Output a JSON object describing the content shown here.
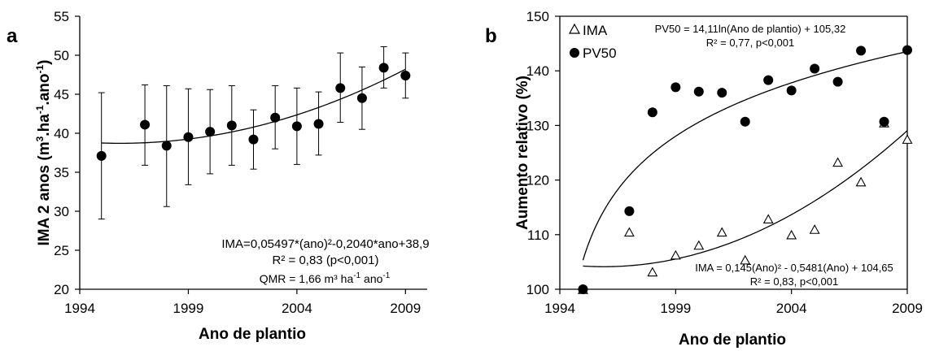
{
  "chart_data": [
    {
      "panel_label": "a",
      "type": "scatter",
      "xlabel": "Ano de plantio",
      "ylabel_main": "IMA 2 anos (m",
      "ylabel_sup1": "3",
      "ylabel_mid": ".ha",
      "ylabel_sup2": "-1",
      "ylabel_mid2": ".ano",
      "ylabel_sup3": "-1",
      "ylabel_end": ")",
      "xlim": [
        1994,
        2010
      ],
      "ylim": [
        20,
        55
      ],
      "xticks": [
        1994,
        1999,
        2004,
        2009
      ],
      "yticks": [
        20,
        25,
        30,
        35,
        40,
        45,
        50,
        55
      ],
      "series": [
        {
          "x": [
            1995,
            1997,
            1998,
            1999,
            2000,
            2001,
            2002,
            2003,
            2004,
            2005,
            2006,
            2007,
            2008,
            2009
          ],
          "y": [
            37.1,
            41.1,
            38.4,
            39.5,
            40.2,
            41.0,
            39.2,
            42.0,
            40.9,
            41.2,
            45.8,
            44.5,
            48.4,
            47.4
          ],
          "err_low": [
            29.0,
            35.9,
            30.6,
            33.4,
            34.8,
            35.9,
            35.4,
            38.0,
            36.0,
            37.2,
            41.4,
            40.5,
            45.8,
            44.5
          ],
          "err_high": [
            45.2,
            46.2,
            46.1,
            45.7,
            45.6,
            46.1,
            43.0,
            46.1,
            45.8,
            45.3,
            50.3,
            48.5,
            51.1,
            50.3
          ]
        }
      ],
      "fit": {
        "a": 0.05497,
        "b": -0.204,
        "c": 38.9,
        "x_from": 1995,
        "x_to": 2009
      },
      "annotations": {
        "line1": "IMA=0,05497*(ano)²-0,2040*ano+38,9",
        "line2": "R² = 0,83 (p<0,001)",
        "line3_main": "QMR = 1,66 m³ ha",
        "line3_sup1": "-1",
        "line3_mid": " ano",
        "line3_sup2": "-1"
      }
    },
    {
      "panel_label": "b",
      "type": "scatter",
      "xlabel": "Ano de plantio",
      "ylabel": "Aumento relativo (%)",
      "xlim": [
        1994,
        2009
      ],
      "ylim": [
        100,
        150
      ],
      "xticks": [
        1994,
        1999,
        2004,
        2009
      ],
      "yticks": [
        100,
        110,
        120,
        130,
        140,
        150
      ],
      "series": [
        {
          "name": "IMA",
          "marker": "open-triangle",
          "x": [
            1995,
            1997,
            1998,
            1999,
            2000,
            2001,
            2002,
            2003,
            2004,
            2005,
            2006,
            2007,
            2008,
            2009
          ],
          "y": [
            99.9,
            110.4,
            103.1,
            106.2,
            108.0,
            110.4,
            105.3,
            112.8,
            109.9,
            110.9,
            123.2,
            119.6,
            130.4,
            127.4
          ]
        },
        {
          "name": "PV50",
          "marker": "filled-circle",
          "x": [
            1995,
            1997,
            1998,
            1999,
            2000,
            2001,
            2002,
            2003,
            2004,
            2005,
            2006,
            2007,
            2008,
            2009
          ],
          "y": [
            100.0,
            114.3,
            132.4,
            137.0,
            136.2,
            136.0,
            130.7,
            138.3,
            136.4,
            140.4,
            138.0,
            143.7,
            130.7,
            143.8
          ]
        }
      ],
      "fit_ima": {
        "a": 0.145,
        "b": -0.5481,
        "c": 104.65,
        "x_from": 1995,
        "x_to": 2009
      },
      "fit_pv50": {
        "a": 14.11,
        "b": 105.32,
        "x_from": 1995,
        "x_to": 2009
      },
      "legend": {
        "ima_label": "IMA",
        "pv50_label": "PV50",
        "placement": "top-left"
      },
      "annotations": {
        "pv50_eq": "PV50 = 14,11ln(Ano de plantio) + 105,32",
        "pv50_r2": "R² = 0,77, p<0,001",
        "ima_eq": "IMA = 0,145(Ano)² - 0,5481(Ano) + 104,65",
        "ima_r2": "R² = 0,83, p<0,001"
      }
    }
  ]
}
